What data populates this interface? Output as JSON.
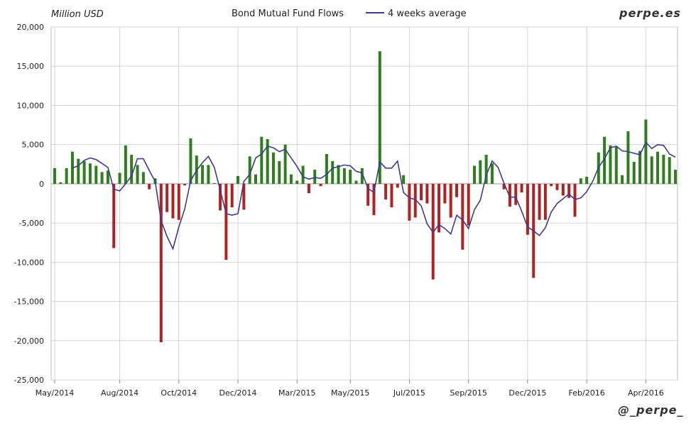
{
  "header": {
    "unit_label": "Million USD",
    "title": "Bond Mutual Fund Flows",
    "legend_label": "4 weeks average",
    "brand_top": "perpe.es",
    "brand_bottom": "@_perpe_"
  },
  "colors": {
    "positive_bar": "#2e7d1f",
    "negative_bar": "#b22222",
    "average_line": "#3b3b8f",
    "grid": "#d3d3d3"
  },
  "chart_data": {
    "type": "bar",
    "title": "Bond Mutual Fund Flows",
    "ylabel": "Million USD",
    "ylim": [
      -25000,
      20000
    ],
    "y_ticks": [
      "20,000",
      "15,000",
      "10,000",
      "5,000",
      "0",
      "-5,000",
      "-10,000",
      "-15,000",
      "-20,000",
      "-25,000"
    ],
    "y_tick_values": [
      20000,
      15000,
      10000,
      5000,
      0,
      -5000,
      -10000,
      -15000,
      -20000,
      -25000
    ],
    "x_tick_labels": [
      "May/2014",
      "Aug/2014",
      "Oct/2014",
      "Dec/2014",
      "Mar/2015",
      "May/2015",
      "Jul/2015",
      "Sep/2015",
      "Dec/2015",
      "Feb/2016",
      "Apr/2016"
    ],
    "x_tick_week_index": [
      0,
      11,
      21,
      31,
      41,
      50,
      60,
      70,
      80,
      90,
      100
    ],
    "grid": true,
    "series": [
      {
        "name": "",
        "kind": "bar",
        "values": [
          2000,
          200,
          2000,
          4100,
          3200,
          2900,
          2600,
          2300,
          1500,
          1700,
          -8200,
          1400,
          4900,
          3700,
          2400,
          1500,
          -700,
          700,
          -20200,
          -3600,
          -4400,
          -4600,
          -200,
          5800,
          3600,
          2400,
          2400,
          100,
          -3400,
          -9700,
          -3000,
          1000,
          -3300,
          3500,
          1200,
          6000,
          5700,
          4000,
          2900,
          5000,
          1200,
          400,
          2300,
          -1200,
          1800,
          -300,
          3800,
          2900,
          2400,
          2000,
          1800,
          400,
          2000,
          -2800,
          -4000,
          16900,
          -2000,
          -3000,
          -500,
          1100,
          -4700,
          -4300,
          -2100,
          -2500,
          -12200,
          -6200,
          -2500,
          -4300,
          -1700,
          -8400,
          -5300,
          2300,
          3000,
          3700,
          2600,
          0,
          -700,
          -2900,
          -2700,
          -1100,
          -6500,
          -12000,
          -4600,
          -4600,
          -300,
          -800,
          -1500,
          -1800,
          -4200,
          700,
          900,
          0,
          4000,
          6000,
          4900,
          4800,
          1100,
          6700,
          2800,
          4200,
          8200,
          3500,
          4100,
          3700,
          3400,
          1800
        ]
      },
      {
        "name": "4 weeks average",
        "kind": "line",
        "values": [
          null,
          null,
          null,
          2000,
          2300,
          3000,
          3300,
          3100,
          2600,
          2100,
          -700,
          -900,
          0,
          1000,
          3200,
          3200,
          1700,
          300,
          -4700,
          -6700,
          -8300,
          -5500,
          -3200,
          400,
          1700,
          2700,
          3500,
          2100,
          -800,
          -3800,
          -4000,
          -3800,
          300,
          1200,
          3300,
          3800,
          4800,
          4600,
          4100,
          4400,
          3300,
          2200,
          900,
          600,
          800,
          700,
          1200,
          2000,
          2200,
          2400,
          2300,
          1600,
          1400,
          -600,
          -1100,
          2800,
          2000,
          2000,
          2900,
          -1100,
          -1800,
          -2000,
          -2800,
          -5100,
          -6200,
          -5200,
          -5700,
          -6400,
          -4000,
          -4600,
          -5700,
          -3300,
          -2100,
          1100,
          2900,
          2100,
          100,
          -1700,
          -1700,
          -3500,
          -5500,
          -6000,
          -6600,
          -5600,
          -3600,
          -2500,
          -1900,
          -1300,
          -2000,
          -1800,
          -1000,
          300,
          2100,
          3200,
          4600,
          4800,
          4200,
          4100,
          3900,
          3700,
          5300,
          4500,
          5000,
          4900,
          3800,
          3400
        ]
      }
    ]
  }
}
